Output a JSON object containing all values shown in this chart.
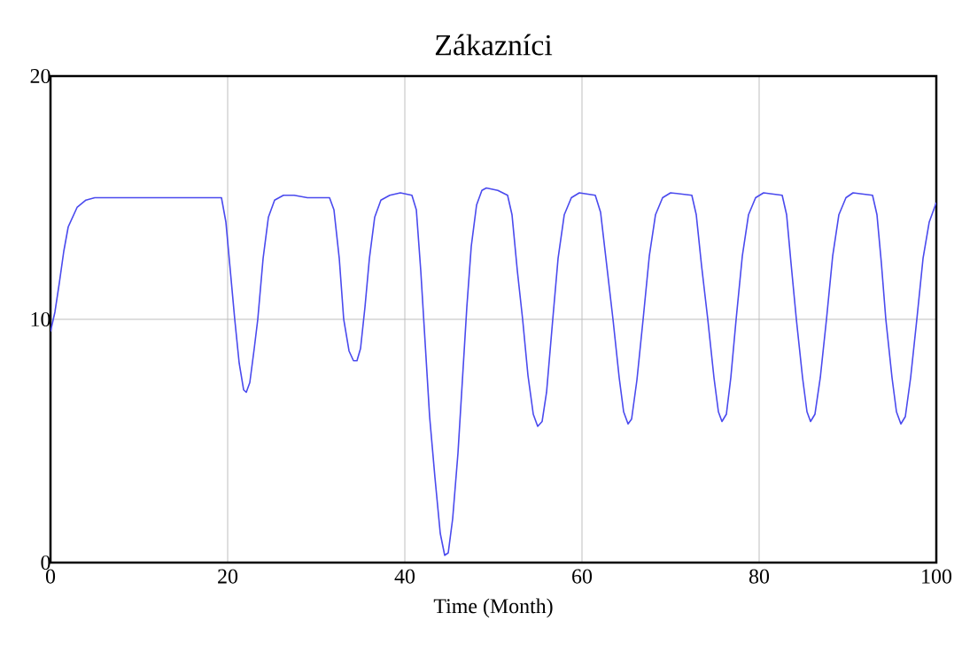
{
  "chart_data": {
    "type": "line",
    "title": "Zákazníci",
    "xlabel": "Time (Month)",
    "x": [
      0,
      0.5,
      1,
      1.5,
      2,
      3,
      4,
      5,
      19.3,
      19.8,
      20.3,
      20.8,
      21.3,
      21.8,
      22.1,
      22.5,
      23.0,
      23.4,
      24.0,
      24.6,
      25.3,
      26.3,
      27.5,
      29,
      31.5,
      32,
      32.6,
      33.1,
      33.7,
      34.2,
      34.6,
      35.0,
      35.5,
      36,
      36.6,
      37.3,
      38.3,
      39.5,
      40.8,
      41.3,
      41.8,
      42.3,
      42.8,
      43.4,
      44,
      44.5,
      44.9,
      45.4,
      46,
      46.5,
      47,
      47.5,
      48.1,
      48.7,
      49.2,
      50.5,
      51.6,
      52.1,
      52.7,
      53.3,
      53.9,
      54.5,
      55,
      55.5,
      56,
      56.7,
      57.3,
      58,
      58.8,
      59.7,
      61.5,
      62.1,
      62.8,
      63.5,
      64.2,
      64.7,
      65.2,
      65.6,
      66.2,
      66.9,
      67.6,
      68.3,
      69.1,
      70,
      72.4,
      72.9,
      73.5,
      74.2,
      74.9,
      75.4,
      75.8,
      76.3,
      76.8,
      77.4,
      78.1,
      78.8,
      79.6,
      80.5,
      82.6,
      83.1,
      83.6,
      84.2,
      84.9,
      85.4,
      85.8,
      86.3,
      86.9,
      87.6,
      88.3,
      89,
      89.8,
      90.6,
      92.8,
      93.3,
      93.8,
      94.3,
      95,
      95.5,
      96,
      96.5,
      97.1,
      97.8,
      98.5,
      99.2,
      100
    ],
    "values": [
      9.5,
      10.3,
      11.5,
      12.8,
      13.8,
      14.6,
      14.9,
      15.0,
      15.0,
      14.0,
      12.0,
      10.0,
      8.2,
      7.1,
      7.0,
      7.4,
      8.8,
      10,
      12.5,
      14.2,
      14.9,
      15.1,
      15.1,
      15.0,
      15.0,
      14.5,
      12.5,
      10.0,
      8.7,
      8.3,
      8.3,
      8.8,
      10.5,
      12.5,
      14.2,
      14.9,
      15.1,
      15.2,
      15.1,
      14.5,
      12,
      9,
      6,
      3.5,
      1.2,
      0.3,
      0.4,
      1.8,
      4.5,
      7.5,
      10.5,
      13,
      14.7,
      15.3,
      15.4,
      15.3,
      15.1,
      14.3,
      12,
      10,
      7.7,
      6.1,
      5.6,
      5.8,
      7.0,
      10,
      12.5,
      14.3,
      15.0,
      15.2,
      15.1,
      14.4,
      12.2,
      10,
      7.6,
      6.2,
      5.7,
      5.9,
      7.5,
      10,
      12.6,
      14.3,
      15.0,
      15.2,
      15.1,
      14.3,
      12.2,
      10,
      7.6,
      6.2,
      5.8,
      6.1,
      7.6,
      10,
      12.6,
      14.3,
      15.0,
      15.2,
      15.1,
      14.3,
      12.3,
      10,
      7.6,
      6.2,
      5.8,
      6.1,
      7.6,
      10,
      12.6,
      14.3,
      15.0,
      15.2,
      15.1,
      14.3,
      12.3,
      10,
      7.6,
      6.2,
      5.7,
      6.0,
      7.6,
      10,
      12.5,
      14.0,
      14.8
    ],
    "color": "#4a4aee",
    "xlim": [
      0,
      100
    ],
    "ylim": [
      0,
      20
    ],
    "xticks": [
      0,
      20,
      40,
      60,
      80,
      100
    ],
    "yticks": [
      0,
      10,
      20
    ],
    "grid": true
  }
}
